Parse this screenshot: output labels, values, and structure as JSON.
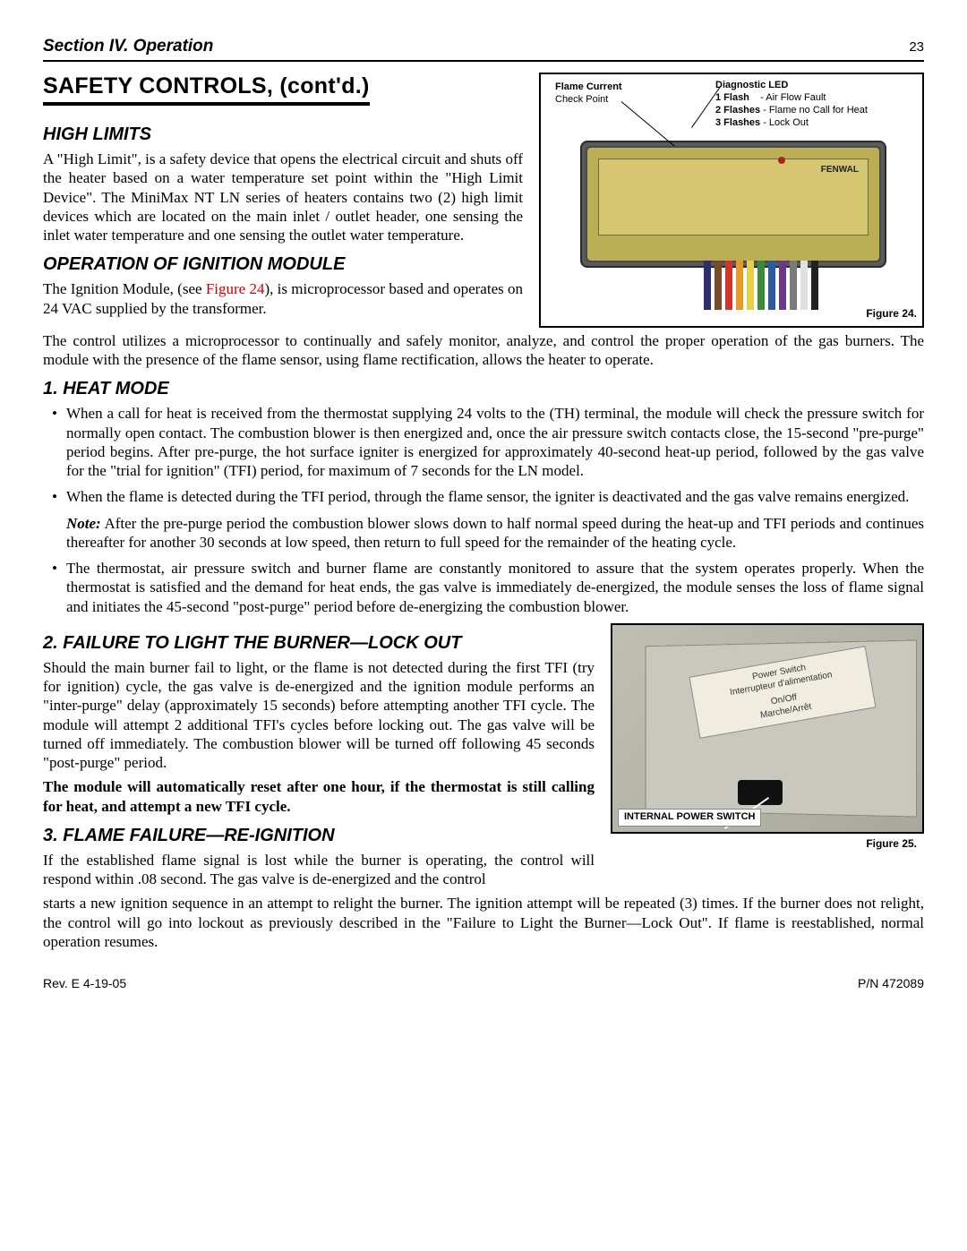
{
  "header": {
    "section": "Section IV.   Operation",
    "page": "23"
  },
  "title": "SAFETY CONTROLS, (cont'd.)",
  "high_limits": {
    "heading": "HIGH LIMITS",
    "body": "A \"High Limit\", is a safety device that opens the electrical circuit and shuts off the heater based on a water temperature set point within the \"High Limit Device\". The MiniMax NT LN series of heaters contains two (2) high limit devices which are located on the main inlet / outlet header, one sensing the inlet water temperature and one sensing the outlet water temperature."
  },
  "fig24": {
    "flame_label": "Flame Current",
    "flame_sub": "Check Point",
    "diag_label": "Diagnostic LED",
    "flash1": "1 Flash",
    "flash1_desc": "-  Air Flow Fault",
    "flash2": "2 Flashes",
    "flash2_desc": "-  Flame no Call for Heat",
    "flash3": "3 Flashes",
    "flash3_desc": "-  Lock Out",
    "brand": "FENWAL",
    "caption": "Figure 24.",
    "module_color": "#d6c672",
    "wire_colors": [
      "#2e2e6e",
      "#7a4a2a",
      "#d0362a",
      "#e69a2a",
      "#e6d04a",
      "#3b8a3b",
      "#2e5aa0",
      "#6a3a8a",
      "#7a7a7a",
      "#e0e0e0",
      "#222222"
    ]
  },
  "ignition": {
    "heading": "OPERATION OF IGNITION MODULE",
    "pre": "The Ignition Module, (see ",
    "xref": "Figure 24",
    "post": "), is microprocessor based and operates on 24 VAC supplied by the transformer. The control utilizes a microprocessor  to continually and safely monitor, analyze, and control the proper operation of the gas burners. The module with the presence of the flame sensor, using flame rectification, allows the heater to operate."
  },
  "heat_mode": {
    "heading": "1. HEAT MODE",
    "b1": "When a call for heat is received from the thermostat supplying 24 volts to the (TH) terminal, the module will check the pressure switch for normally open contact. The combustion blower is then energized and, once the air pressure switch contacts close, the 15-second \"pre-purge\" period begins. After pre-purge, the hot surface igniter is energized for approximately 40-second heat-up period, followed by the gas valve for the \"trial for ignition\" (TFI) period, for maximum of 7 seconds for the LN model.",
    "b2": "When the flame is detected during the TFI period, through the flame sensor, the igniter is deactivated and the gas valve remains energized.",
    "note_label": "Note:",
    "note": " After the pre-purge period the combustion blower slows down to half normal speed during the heat-up and TFI periods and continues thereafter for another 30 seconds at low speed, then return to full speed for the remainder of the heating cycle.",
    "b3": "The thermostat, air pressure switch and burner flame are constantly monitored to assure that the system operates properly. When the thermostat is satisfied and the demand for heat ends, the gas valve is immediately de-energized, the module senses the loss of flame signal and initiates the 45-second \"post-purge\" period before de-energizing the combustion blower."
  },
  "failure": {
    "heading": "2. FAILURE TO LIGHT THE BURNER—LOCK OUT",
    "body": "Should the main burner fail to light, or the flame is not detected during the first TFI (try for ignition) cycle, the gas valve is de-energized and the ignition module performs an \"inter-purge\" delay (approximately 15 seconds) before attempting another TFI cycle. The module will attempt 2 additional TFI's cycles before locking out. The gas valve will be turned off immediately. The combustion blower will be turned off following 45 seconds \"post-purge\" period.",
    "bold": "The module will automatically reset after one hour, if the thermostat is still calling for heat, and attempt a new TFI cycle."
  },
  "fig25": {
    "sticker1": "Power Switch",
    "sticker2": "Interrupteur d'alimentation",
    "sticker3": "On/Off",
    "sticker4": "Marche/Arrêt",
    "ips": "INTERNAL POWER SWITCH",
    "caption": "Figure 25."
  },
  "flame_fail": {
    "heading": "3. FLAME FAILURE—RE-IGNITION",
    "p1": "If the established flame signal is lost while the burner is operating, the control will respond within .08 second. The gas valve is de-energized and the control",
    "p2": "starts a new ignition sequence in an attempt to relight the burner. The ignition attempt will be repeated (3) times. If the burner does not relight, the control will go into lockout as previously described in the \"Failure to Light the Burner—Lock Out\". If flame is reestablished, normal operation resumes."
  },
  "footer": {
    "rev": "Rev. E  4-19-05",
    "pn": "P/N   472089"
  }
}
